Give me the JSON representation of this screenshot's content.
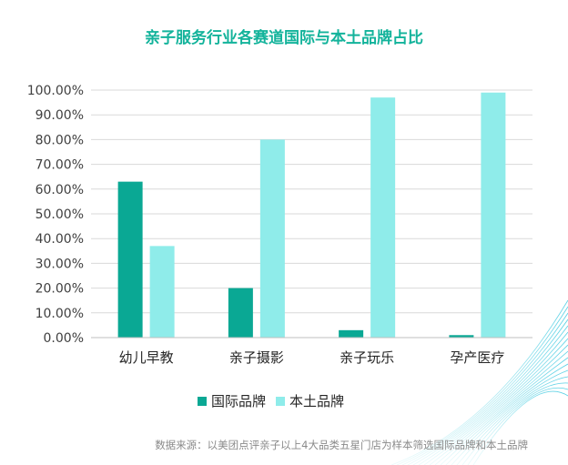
{
  "chart_data": {
    "type": "bar",
    "title": "亲子服务行业各赛道国际与本土品牌占比",
    "categories": [
      "幼儿早教",
      "亲子摄影",
      "亲子玩乐",
      "孕产医疗"
    ],
    "series": [
      {
        "name": "国际品牌",
        "color": "#0aa894",
        "values": [
          63,
          20,
          3,
          1
        ]
      },
      {
        "name": "本土品牌",
        "color": "#8fecea",
        "values": [
          37,
          80,
          97,
          99
        ]
      }
    ],
    "y_ticks": [
      "0.00%",
      "10.00%",
      "20.00%",
      "30.00%",
      "40.00%",
      "50.00%",
      "60.00%",
      "70.00%",
      "80.00%",
      "90.00%",
      "100.00%"
    ],
    "ylim": [
      0,
      100
    ],
    "grid": true,
    "legend_position": "bottom",
    "source_note": "数据来源：以美团点评亲子以上4大品类五星门店为样本筛选国际品牌和本土品牌"
  }
}
